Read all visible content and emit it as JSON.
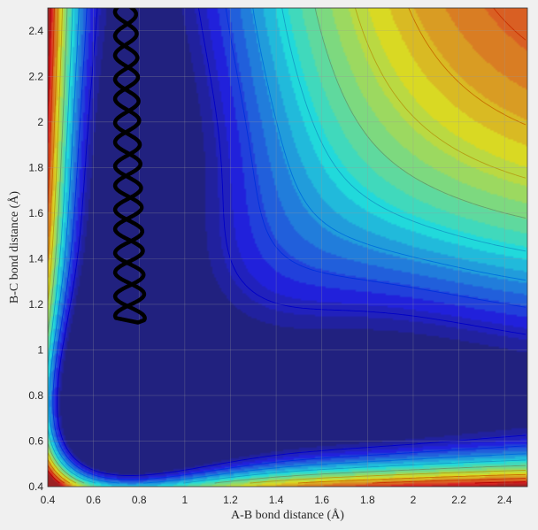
{
  "chart_data": {
    "type": "contour",
    "title": "",
    "xlabel": "A-B bond distance (Å)",
    "ylabel": "B-C bond distance (Å)",
    "xlim": [
      0.4,
      2.5
    ],
    "ylim": [
      0.4,
      2.5
    ],
    "x_ticks": [
      0.4,
      0.6,
      0.8,
      1.0,
      1.2,
      1.4,
      1.6,
      1.8,
      2.0,
      2.2,
      2.4
    ],
    "y_ticks": [
      0.4,
      0.6,
      0.8,
      1.0,
      1.2,
      1.4,
      1.6,
      1.8,
      2.0,
      2.2,
      2.4
    ],
    "x_tick_labels": [
      "0.4",
      "0.6",
      "0.8",
      "1",
      "1.2",
      "1.4",
      "1.6",
      "1.8",
      "2",
      "2.2",
      "2.4"
    ],
    "y_tick_labels": [
      "0.4",
      "0.6",
      "0.8",
      "1",
      "1.2",
      "1.4",
      "1.6",
      "1.8",
      "2",
      "2.2",
      "2.4"
    ],
    "grid": true,
    "colormap": "jet",
    "colors": {
      "low": "#3b3fa8",
      "high": "#b0504b",
      "trajectory": "#000000",
      "grid": "#9a9a9a"
    },
    "trajectory": {
      "description_center_x": 0.74,
      "amplitude_x": 0.065,
      "y_start": 2.52,
      "y_end": 1.13,
      "turnaround": {
        "x": 0.795,
        "y": 1.12
      }
    }
  }
}
